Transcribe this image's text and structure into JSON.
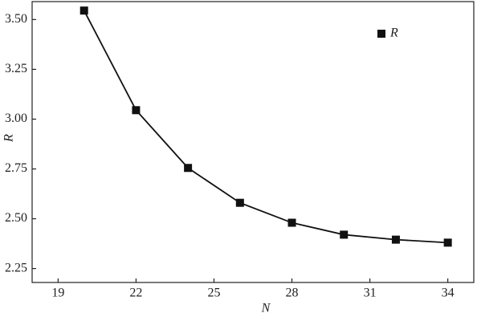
{
  "chart_data": {
    "type": "line",
    "x_label": "N",
    "y_label": "R",
    "x": [
      20,
      22,
      24,
      26,
      28,
      30,
      32,
      34
    ],
    "series": [
      {
        "name": "R",
        "color": "#111111",
        "values": [
          3.545,
          3.045,
          2.755,
          2.58,
          2.48,
          2.42,
          2.395,
          2.38
        ]
      }
    ],
    "xlim": [
      18,
      35
    ],
    "xticks": [
      19,
      22,
      25,
      28,
      31,
      34
    ],
    "ylim": [
      2.18,
      3.59
    ],
    "yticks": [
      2.25,
      {
        "value": 2.5,
        "label": "2.50"
      },
      2.75,
      {
        "value": 3,
        "label": "3.00"
      },
      3.25,
      {
        "value": 3.5,
        "label": "3.50"
      }
    ],
    "legend": "upper right",
    "grid": false
  }
}
